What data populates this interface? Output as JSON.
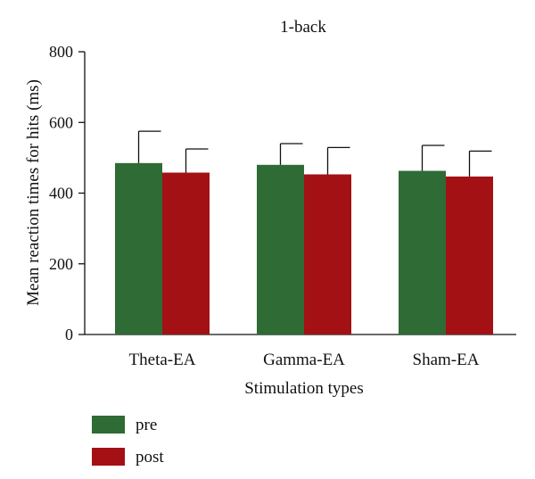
{
  "chart_data": {
    "type": "bar",
    "title": "1-back",
    "xlabel": "Stimulation types",
    "ylabel": "Mean reaction times for hits (ms)",
    "categories": [
      "Theta-EA",
      "Gamma-EA",
      "Sham-EA"
    ],
    "ylim": [
      0,
      800
    ],
    "yticks": [
      0,
      200,
      400,
      600,
      800
    ],
    "grid": false,
    "legend_position": "bottom-left",
    "series": [
      {
        "name": "pre",
        "color": "#2e6b35",
        "values": [
          485,
          480,
          463
        ],
        "errors": [
          90,
          60,
          72
        ]
      },
      {
        "name": "post",
        "color": "#a31115",
        "values": [
          458,
          453,
          447
        ],
        "errors": [
          67,
          76,
          72
        ]
      }
    ]
  }
}
